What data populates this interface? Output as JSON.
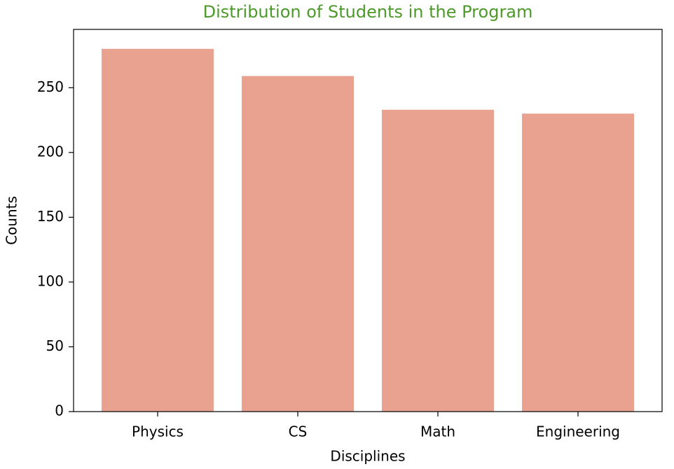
{
  "chart_data": {
    "type": "bar",
    "title": "Distribution of Students in the Program",
    "x_label": "Disciplines",
    "y_label": "Counts",
    "categories": [
      "Physics",
      "CS",
      "Math",
      "Engineering"
    ],
    "values": [
      280,
      259,
      233,
      230
    ],
    "color": "#e9a28f",
    "ylim": [
      0,
      295
    ],
    "yticks": [
      0,
      50,
      100,
      150,
      200,
      250
    ],
    "grid": false
  }
}
